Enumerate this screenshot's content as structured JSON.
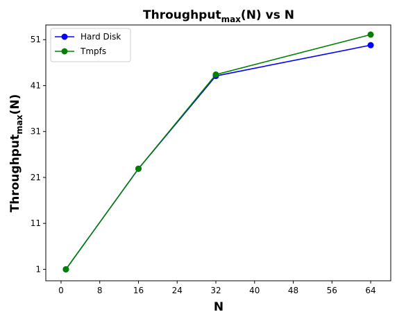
{
  "chart_data": {
    "type": "line",
    "title": {
      "main": "Throughput",
      "sub": "max",
      "tail": "(N) vs N"
    },
    "xlabel": "N",
    "ylabel": {
      "main": "Throughput",
      "sub": "max",
      "tail": "(N)"
    },
    "xlim": [
      -3.15,
      68.15
    ],
    "ylim": [
      -1.5,
      54.2
    ],
    "xticks": [
      0,
      8,
      16,
      24,
      32,
      40,
      48,
      56,
      64
    ],
    "yticks": [
      1,
      11,
      21,
      31,
      41,
      51
    ],
    "grid": false,
    "legend_position": "top-left",
    "series": [
      {
        "name": "Hard Disk",
        "color": "#0000ff",
        "x": [
          1,
          16,
          32,
          64
        ],
        "y": [
          1.0,
          22.9,
          43.1,
          49.8
        ]
      },
      {
        "name": "Tmpfs",
        "color": "#008000",
        "x": [
          1,
          16,
          32,
          64
        ],
        "y": [
          1.0,
          22.9,
          43.4,
          52.1
        ]
      }
    ]
  }
}
